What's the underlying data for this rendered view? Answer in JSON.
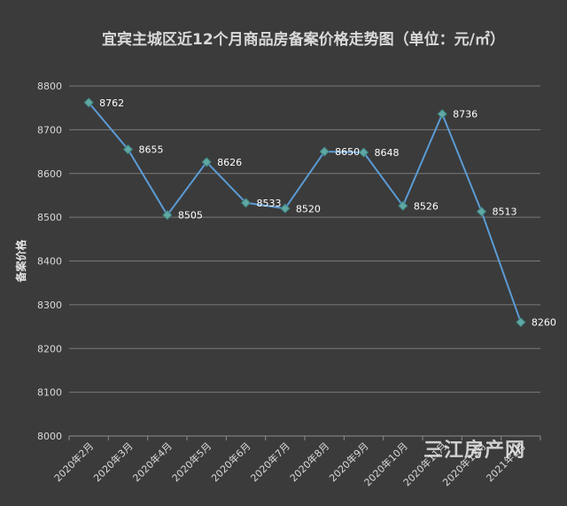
{
  "chart_data": {
    "type": "line",
    "title": "宜宾主城区近12个月商品房备案价格走势图（单位：元/㎡）",
    "ylabel": "备案价格",
    "xlabel": "",
    "categories": [
      "2020年2月",
      "2020年3月",
      "2020年4月",
      "2020年5月",
      "2020年6月",
      "2020年7月",
      "2020年8月",
      "2020年9月",
      "2020年10月",
      "2020年11月",
      "2020年12月",
      "2021年1月"
    ],
    "series": [
      {
        "values": [
          8762,
          8655,
          8505,
          8626,
          8533,
          8520,
          8650,
          8648,
          8526,
          8736,
          8513,
          8260
        ]
      }
    ],
    "ylim": [
      8000,
      8800
    ],
    "yticks": [
      8000,
      8100,
      8200,
      8300,
      8400,
      8500,
      8600,
      8700,
      8800
    ],
    "grid": true,
    "line_color": "#5b9bd5",
    "marker_color": "#5fa8a3",
    "data_labels": true
  },
  "watermark": "三江房产网"
}
